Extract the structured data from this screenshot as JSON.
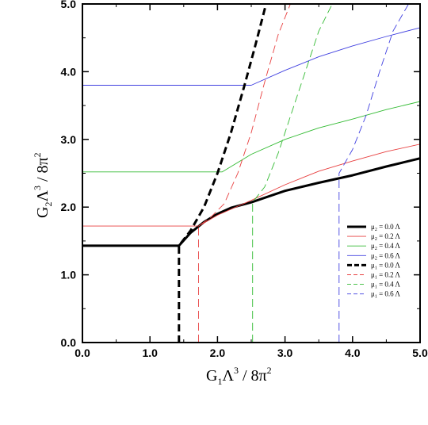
{
  "chart_data": {
    "type": "line",
    "title": "",
    "xlabel": {
      "base": "G",
      "sub": "1",
      "mid": "Λ",
      "sup": "3",
      "tail": " / 8π",
      "sup2": "2"
    },
    "ylabel": {
      "base": "G",
      "sub": "2",
      "mid": "Λ",
      "sup": "3",
      "tail": " / 8π",
      "sup2": "2"
    },
    "xlim": [
      0,
      5
    ],
    "ylim": [
      0,
      5
    ],
    "xticks": [
      "0.0",
      "1.0",
      "2.0",
      "3.0",
      "4.0",
      "5.0"
    ],
    "yticks": [
      "0.0",
      "1.0",
      "2.0",
      "3.0",
      "4.0",
      "5.0"
    ],
    "grid": false,
    "legend_position": "lower-right",
    "series": [
      {
        "name": "μ2 = 0.0 Λ",
        "label_sym": "μ",
        "label_sub": "2",
        "label_rest": " = 0.0 Λ",
        "color": "#000000",
        "dash": "solid",
        "width": 3,
        "x": [
          0.0,
          1.43,
          1.6,
          1.8,
          2.0,
          2.2,
          2.5,
          3.0,
          3.5,
          4.0,
          4.5,
          5.0
        ],
        "y": [
          1.43,
          1.43,
          1.62,
          1.78,
          1.9,
          1.99,
          2.07,
          2.24,
          2.36,
          2.47,
          2.6,
          2.72
        ]
      },
      {
        "name": "μ2 = 0.2 Λ",
        "label_sym": "μ",
        "label_sub": "2",
        "label_rest": " = 0.2 Λ",
        "color": "#e84040",
        "dash": "solid",
        "width": 0.9,
        "x": [
          0.0,
          1.72,
          2.0,
          2.5,
          3.0,
          3.5,
          4.0,
          4.5,
          5.0
        ],
        "y": [
          1.72,
          1.72,
          1.88,
          2.1,
          2.33,
          2.53,
          2.68,
          2.82,
          2.93
        ]
      },
      {
        "name": "μ2 = 0.4 Λ",
        "label_sym": "μ",
        "label_sub": "2",
        "label_rest": " = 0.4 Λ",
        "color": "#33bb33",
        "dash": "solid",
        "width": 0.9,
        "x": [
          0.0,
          2.07,
          2.5,
          3.0,
          3.5,
          4.0,
          4.5,
          5.0
        ],
        "y": [
          2.52,
          2.52,
          2.78,
          3.0,
          3.17,
          3.3,
          3.44,
          3.56
        ]
      },
      {
        "name": "μ2 = 0.6 Λ",
        "label_sym": "μ",
        "label_sub": "2",
        "label_rest": " = 0.6 Λ",
        "color": "#4040e0",
        "dash": "solid",
        "width": 0.9,
        "x": [
          0.0,
          2.5,
          3.0,
          3.5,
          4.0,
          4.5,
          5.0
        ],
        "y": [
          3.8,
          3.8,
          4.02,
          4.22,
          4.38,
          4.52,
          4.65
        ]
      },
      {
        "name": "μ1 = 0.0 Λ",
        "label_sym": "μ",
        "label_sub": "1",
        "label_rest": " = 0.0 Λ",
        "color": "#000000",
        "dash": "dashed",
        "width": 3,
        "x": [
          1.43,
          1.43,
          1.6,
          1.8,
          2.0,
          2.2,
          2.4,
          2.55,
          2.72
        ],
        "y": [
          0.0,
          1.43,
          1.65,
          2.0,
          2.5,
          3.1,
          3.8,
          4.35,
          5.0
        ]
      },
      {
        "name": "μ1 = 0.2 Λ",
        "label_sym": "μ",
        "label_sub": "1",
        "label_rest": " = 0.2 Λ",
        "color": "#e84040",
        "dash": "dashed",
        "width": 0.9,
        "x": [
          1.72,
          1.72,
          1.9,
          2.1,
          2.3,
          2.5,
          2.7,
          2.9,
          3.08
        ],
        "y": [
          0.0,
          1.72,
          1.85,
          2.05,
          2.5,
          3.1,
          3.85,
          4.55,
          5.0
        ]
      },
      {
        "name": "μ1 = 0.4 Λ",
        "label_sym": "μ",
        "label_sub": "1",
        "label_rest": " = 0.4 Λ",
        "color": "#33bb33",
        "dash": "dashed",
        "width": 0.9,
        "x": [
          2.52,
          2.52,
          2.7,
          2.9,
          3.1,
          3.3,
          3.5,
          3.7
        ],
        "y": [
          0.0,
          2.07,
          2.3,
          2.8,
          3.4,
          4.0,
          4.6,
          5.0
        ]
      },
      {
        "name": "μ1 = 0.6 Λ",
        "label_sym": "μ",
        "label_sub": "1",
        "label_rest": " = 0.6 Λ",
        "color": "#4040e0",
        "dash": "dashed",
        "width": 0.9,
        "x": [
          3.8,
          3.8,
          4.0,
          4.2,
          4.4,
          4.6,
          4.83
        ],
        "y": [
          0.0,
          2.5,
          2.85,
          3.35,
          4.0,
          4.6,
          5.0
        ]
      }
    ]
  }
}
